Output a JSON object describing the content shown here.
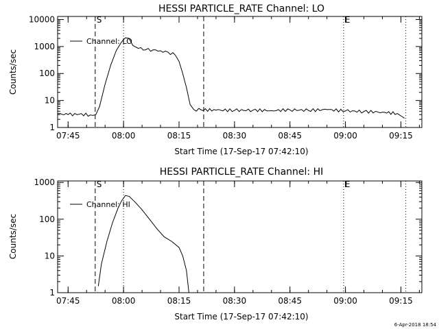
{
  "footer_date": "6-Apr-2018 18:54",
  "chart_data": [
    {
      "type": "line",
      "title": "HESSI PARTICLE_RATE Channel: LO",
      "xlabel": "Start Time (17-Sep-17 07:42:10)",
      "ylabel": "Counts/sec",
      "yscale": "log",
      "ylim": [
        1,
        13000
      ],
      "xlim": [
        "07:42:10",
        "09:20:40"
      ],
      "x_tick_labels": [
        "07:45",
        "08:00",
        "08:15",
        "08:30",
        "08:45",
        "09:00",
        "09:15"
      ],
      "y_tick_labels": [
        "1",
        "10",
        "100",
        "1000",
        "10000"
      ],
      "markers": [
        {
          "label": "S",
          "time": "07:52:20",
          "style": "dashed"
        },
        {
          "label": "",
          "time": "08:00:00",
          "style": "dotted"
        },
        {
          "label": "",
          "time": "08:21:40",
          "style": "dashed"
        },
        {
          "label": "E",
          "time": "08:59:30",
          "style": "dotted"
        },
        {
          "label": "",
          "time": "09:16:20",
          "style": "dotted"
        }
      ],
      "legend": {
        "position": "top-left",
        "entries": [
          "Channel: LO"
        ]
      },
      "series": [
        {
          "name": "Channel: LO",
          "points": [
            [
              "07:42:10",
              3.2
            ],
            [
              "07:45:00",
              3.0
            ],
            [
              "07:48:00",
              3.1
            ],
            [
              "07:51:00",
              2.9
            ],
            [
              "07:52:30",
              3.0
            ],
            [
              "07:53:30",
              6
            ],
            [
              "07:55:00",
              40
            ],
            [
              "07:56:30",
              200
            ],
            [
              "07:58:00",
              700
            ],
            [
              "07:59:30",
              1500
            ],
            [
              "08:00:30",
              2100
            ],
            [
              "08:01:30",
              2000
            ],
            [
              "08:02:30",
              1100
            ],
            [
              "08:04:00",
              850
            ],
            [
              "08:06:00",
              760
            ],
            [
              "08:08:00",
              760
            ],
            [
              "08:10:00",
              700
            ],
            [
              "08:12:00",
              620
            ],
            [
              "08:14:00",
              480
            ],
            [
              "08:15:00",
              280
            ],
            [
              "08:16:00",
              100
            ],
            [
              "08:17:00",
              30
            ],
            [
              "08:18:00",
              7
            ],
            [
              "08:19:00",
              4.6
            ],
            [
              "08:21:00",
              4.5
            ],
            [
              "08:25:00",
              4.4
            ],
            [
              "08:30:00",
              4.3
            ],
            [
              "08:35:00",
              4.4
            ],
            [
              "08:40:00",
              4.2
            ],
            [
              "08:45:00",
              4.5
            ],
            [
              "08:50:00",
              4.3
            ],
            [
              "08:55:00",
              4.6
            ],
            [
              "09:00:00",
              4.1
            ],
            [
              "09:05:00",
              3.9
            ],
            [
              "09:10:00",
              3.7
            ],
            [
              "09:14:00",
              3.3
            ],
            [
              "09:16:00",
              2.2
            ]
          ]
        }
      ]
    },
    {
      "type": "line",
      "title": "HESSI PARTICLE_RATE Channel: HI",
      "xlabel": "Start Time (17-Sep-17 07:42:10)",
      "ylabel": "Counts/sec",
      "yscale": "log",
      "ylim": [
        1,
        1100
      ],
      "xlim": [
        "07:42:10",
        "09:20:40"
      ],
      "x_tick_labels": [
        "07:45",
        "08:00",
        "08:15",
        "08:30",
        "08:45",
        "09:00",
        "09:15"
      ],
      "y_tick_labels": [
        "1",
        "10",
        "100",
        "1000"
      ],
      "markers": [
        {
          "label": "S",
          "time": "07:52:20",
          "style": "dashed"
        },
        {
          "label": "",
          "time": "08:00:00",
          "style": "dotted"
        },
        {
          "label": "",
          "time": "08:21:40",
          "style": "dashed"
        },
        {
          "label": "E",
          "time": "08:59:30",
          "style": "dotted"
        },
        {
          "label": "",
          "time": "09:16:20",
          "style": "dotted"
        }
      ],
      "legend": {
        "position": "top-left",
        "entries": [
          "Channel: HI"
        ]
      },
      "series": [
        {
          "name": "Channel: HI",
          "points": [
            [
              "07:53:10",
              1.5
            ],
            [
              "07:54:00",
              6
            ],
            [
              "07:55:30",
              25
            ],
            [
              "07:57:00",
              80
            ],
            [
              "07:58:30",
              200
            ],
            [
              "07:59:30",
              320
            ],
            [
              "08:00:30",
              440
            ],
            [
              "08:01:30",
              420
            ],
            [
              "08:03:00",
              300
            ],
            [
              "08:05:00",
              180
            ],
            [
              "08:07:00",
              100
            ],
            [
              "08:09:00",
              55
            ],
            [
              "08:11:00",
              33
            ],
            [
              "08:13:00",
              25
            ],
            [
              "08:15:00",
              17
            ],
            [
              "08:16:00",
              10
            ],
            [
              "08:17:00",
              4
            ],
            [
              "08:17:40",
              1
            ]
          ]
        }
      ]
    }
  ]
}
